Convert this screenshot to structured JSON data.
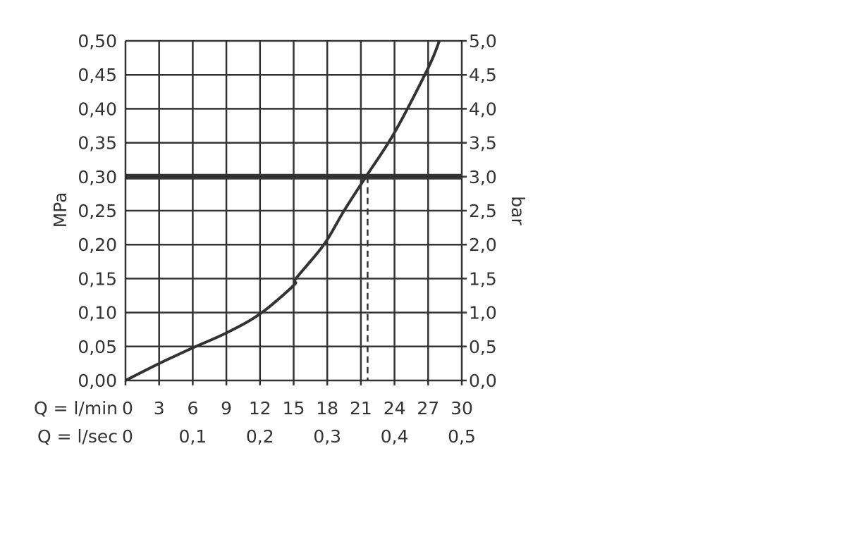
{
  "chart_data": {
    "type": "line",
    "xlabel_rows": [
      "Q = l/min",
      "Q = l/sec"
    ],
    "ylabel_left": "MPa",
    "ylabel_right": "bar",
    "xlim": [
      0,
      30
    ],
    "ylim": [
      0,
      0.5
    ],
    "grid": true,
    "x_ticks_lmin": [
      "0",
      "3",
      "6",
      "9",
      "12",
      "15",
      "18",
      "21",
      "24",
      "27",
      "30"
    ],
    "x_ticks_lsec": [
      {
        "value": 0,
        "label": "0"
      },
      {
        "value": 6,
        "label": "0,1"
      },
      {
        "value": 12,
        "label": "0,2"
      },
      {
        "value": 18,
        "label": "0,3"
      },
      {
        "value": 24,
        "label": "0,4"
      },
      {
        "value": 30,
        "label": "0,5"
      }
    ],
    "y_ticks_left": [
      "0,00",
      "0,05",
      "0,10",
      "0,15",
      "0,20",
      "0,25",
      "0,30",
      "0,35",
      "0,40",
      "0,45",
      "0,50"
    ],
    "y_ticks_right": [
      "0,0",
      "0,5",
      "1,0",
      "1,5",
      "2,0",
      "2,5",
      "3,0",
      "3,5",
      "4,0",
      "4,5",
      "5,0"
    ],
    "series": [
      {
        "x": [
          0,
          3,
          6,
          9,
          12,
          15,
          15.2,
          17.7,
          19.5,
          21.45,
          24,
          27,
          28
        ],
        "y": [
          0,
          0.025,
          0.048,
          0.07,
          0.098,
          0.14,
          0.15,
          0.2,
          0.25,
          0.3,
          0.365,
          0.46,
          0.5
        ]
      }
    ],
    "reference_line": {
      "y": 0.3
    },
    "marker_line": {
      "x": 21.6,
      "style": "dashed"
    },
    "color": "#333333"
  }
}
